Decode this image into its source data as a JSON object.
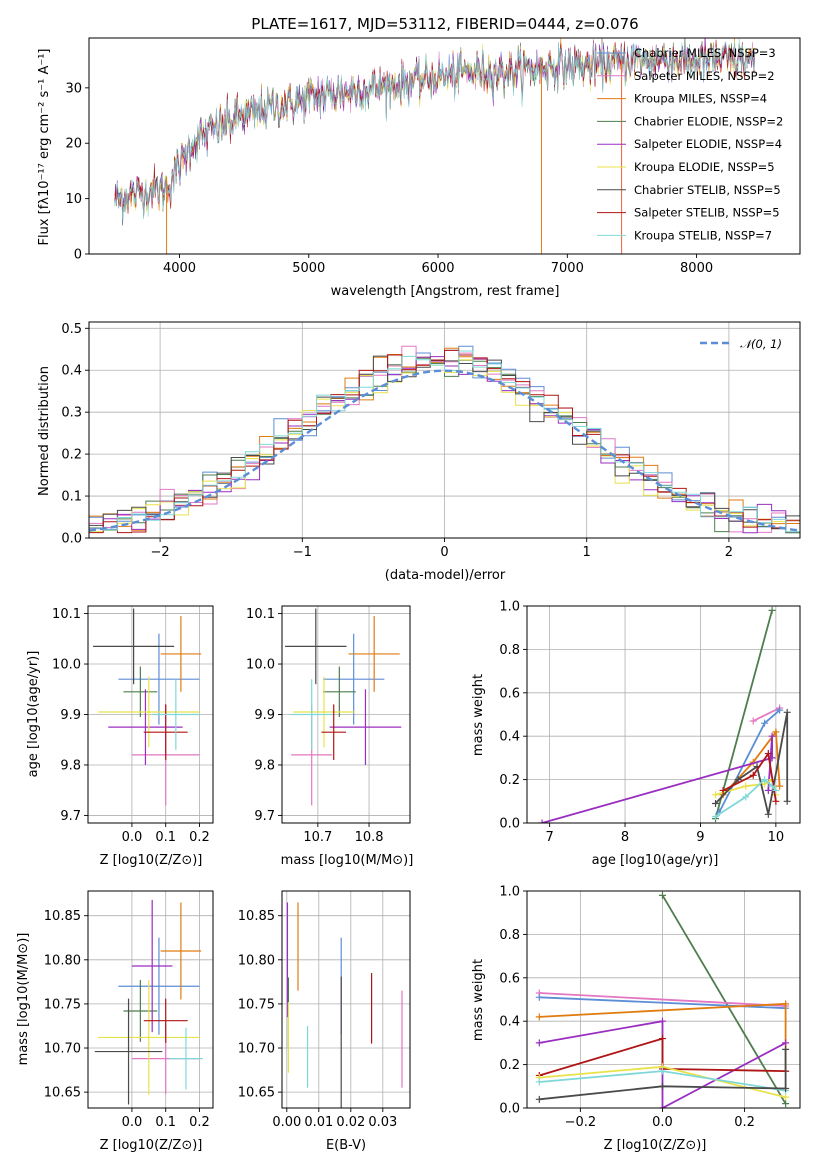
{
  "colors": {
    "chabrier_miles": "#5b8ed6",
    "salpeter_miles": "#e377c2",
    "kroupa_miles": "#e07b10",
    "chabrier_elodie": "#4e7d4e",
    "salpeter_elodie": "#9a2ec0",
    "kroupa_elodie": "#e8e24a",
    "chabrier_stelib": "#4a4a4a",
    "salpeter_stelib": "#b01515",
    "kroupa_stelib": "#7fd8d8",
    "normal": "#5b8ed6"
  },
  "chart_data": [
    {
      "id": "spectrum",
      "type": "line",
      "title": "PLATE=1617, MJD=53112, FIBERID=0444, z=0.076",
      "xlabel": "wavelength [Angstrom, rest frame]",
      "ylabel": "Flux [fλ10⁻¹⁷ erg cm⁻² s⁻¹ A⁻¹]",
      "xlim": [
        3300,
        8800
      ],
      "ylim": [
        0,
        39
      ],
      "xticks": [
        4000,
        5000,
        6000,
        7000,
        8000
      ],
      "yticks": [
        0,
        10,
        20,
        30
      ],
      "legend_position": "right",
      "legend": [
        "Chabrier MILES, NSSP=3",
        "Salpeter MILES, NSSP=2",
        "Kroupa MILES, NSSP=4",
        "Chabrier ELODIE, NSSP=2",
        "Salpeter ELODIE, NSSP=4",
        "Kroupa ELODIE, NSSP=5",
        "Chabrier STELIB, NSSP=5",
        "Salpeter STELIB, NSSP=5",
        "Kroupa STELIB, NSSP=7"
      ],
      "continuum": {
        "x": [
          3500,
          3700,
          3900,
          4000,
          4100,
          4300,
          4500,
          4800,
          5000,
          5200,
          5500,
          5800,
          6000,
          6300,
          6600,
          6900,
          7200,
          7500,
          7800,
          8100,
          8400
        ],
        "y": [
          10,
          11,
          12,
          16,
          20,
          23,
          25,
          27,
          28,
          29,
          30,
          31,
          32,
          33,
          33,
          34,
          34,
          35,
          35,
          35,
          35
        ]
      }
    },
    {
      "id": "residuals",
      "type": "histogram",
      "xlabel": "(data-model)/error",
      "ylabel": "Normed distribution",
      "xlim": [
        -2.5,
        2.5
      ],
      "ylim": [
        0,
        0.515
      ],
      "xticks": [
        -2,
        -1,
        0,
        1,
        2
      ],
      "yticks": [
        0.0,
        0.1,
        0.2,
        0.3,
        0.4,
        0.5
      ],
      "grid": true,
      "legend_position": "top-right",
      "legend": [
        "𝒩(0, 1)"
      ],
      "bins": {
        "start": -2.5,
        "width": 0.1,
        "count": 50
      }
    },
    {
      "id": "age-vs-Z",
      "type": "errorbar",
      "xlabel": "Z [log10(Z/Z⊙)]",
      "ylabel": "age  [log10(age/yr)]",
      "xlim": [
        -0.13,
        0.24
      ],
      "ylim": [
        9.685,
        10.115
      ],
      "xticks": [
        0.0,
        0.1,
        0.2
      ],
      "yticks": [
        9.7,
        9.8,
        9.9,
        10.0,
        10.1
      ],
      "grid": true,
      "points": [
        {
          "key": "chabrier_miles",
          "x": 0.08,
          "xerr": 0.12,
          "y": 9.97,
          "yerr": 0.09
        },
        {
          "key": "salpeter_miles",
          "x": 0.1,
          "xerr": 0.1,
          "y": 9.82,
          "yerr": 0.1
        },
        {
          "key": "kroupa_miles",
          "x": 0.145,
          "xerr": 0.06,
          "y": 10.02,
          "yerr": 0.075
        },
        {
          "key": "chabrier_elodie",
          "x": 0.025,
          "xerr": 0.05,
          "y": 9.945,
          "yerr": 0.05
        },
        {
          "key": "salpeter_elodie",
          "x": 0.04,
          "xerr": 0.11,
          "y": 9.875,
          "yerr": 0.075
        },
        {
          "key": "kroupa_elodie",
          "x": 0.05,
          "xerr": 0.15,
          "y": 9.905,
          "yerr": 0.07
        },
        {
          "key": "chabrier_stelib",
          "x": 0.005,
          "xerr": 0.12,
          "y": 10.035,
          "yerr": 0.075
        },
        {
          "key": "salpeter_stelib",
          "x": 0.1,
          "xerr": 0.065,
          "y": 9.865,
          "yerr": 0.055
        },
        {
          "key": "kroupa_stelib",
          "x": 0.13,
          "xerr": 0.07,
          "y": 9.9,
          "yerr": 0.07
        }
      ]
    },
    {
      "id": "age-vs-mass",
      "type": "errorbar",
      "xlabel": "mass [log10(M/M⊙)]",
      "ylabel": "",
      "xlim": [
        10.63,
        10.88
      ],
      "ylim": [
        9.685,
        10.115
      ],
      "xticks": [
        10.7,
        10.8
      ],
      "yticks": [
        9.7,
        9.8,
        9.9,
        10.0,
        10.1
      ],
      "grid": true,
      "points": [
        {
          "key": "chabrier_miles",
          "x": 10.77,
          "xerr": 0.06,
          "y": 9.97,
          "yerr": 0.09
        },
        {
          "key": "salpeter_miles",
          "x": 10.688,
          "xerr": 0.04,
          "y": 9.82,
          "yerr": 0.1
        },
        {
          "key": "kroupa_miles",
          "x": 10.81,
          "xerr": 0.05,
          "y": 10.02,
          "yerr": 0.075
        },
        {
          "key": "chabrier_elodie",
          "x": 10.742,
          "xerr": 0.032,
          "y": 9.945,
          "yerr": 0.05
        },
        {
          "key": "salpeter_elodie",
          "x": 10.793,
          "xerr": 0.07,
          "y": 9.875,
          "yerr": 0.075
        },
        {
          "key": "kroupa_elodie",
          "x": 10.712,
          "xerr": 0.06,
          "y": 9.905,
          "yerr": 0.07
        },
        {
          "key": "chabrier_stelib",
          "x": 10.696,
          "xerr": 0.06,
          "y": 10.035,
          "yerr": 0.075
        },
        {
          "key": "salpeter_stelib",
          "x": 10.731,
          "xerr": 0.024,
          "y": 9.865,
          "yerr": 0.055
        },
        {
          "key": "kroupa_stelib",
          "x": 10.688,
          "xerr": 0.04,
          "y": 9.9,
          "yerr": 0.07
        }
      ]
    },
    {
      "id": "weights-vs-age",
      "type": "line",
      "xlabel": "age  [log10(age/yr)]",
      "ylabel": "mass weight",
      "xlim": [
        6.7,
        10.32
      ],
      "ylim": [
        0,
        1
      ],
      "xticks": [
        7,
        8,
        9,
        10
      ],
      "yticks": [
        0.0,
        0.2,
        0.4,
        0.6,
        0.8,
        1.0
      ],
      "grid": true,
      "series": [
        {
          "key": "chabrier_elodie",
          "x": [
            9.2,
            9.95
          ],
          "y": [
            0.02,
            0.98
          ]
        },
        {
          "key": "salpeter_miles",
          "x": [
            9.7,
            10.05
          ],
          "y": [
            0.47,
            0.53
          ]
        },
        {
          "key": "chabrier_miles",
          "x": [
            9.25,
            9.85,
            10.05
          ],
          "y": [
            0.05,
            0.46,
            0.52
          ]
        },
        {
          "key": "kroupa_miles",
          "x": [
            9.3,
            9.7,
            10.0,
            10.05
          ],
          "y": [
            0.13,
            0.28,
            0.42,
            0.17
          ]
        },
        {
          "key": "salpeter_elodie",
          "x": [
            6.9,
            9.95,
            9.95,
            9.9
          ],
          "y": [
            0.0,
            0.3,
            0.4,
            0.15
          ]
        },
        {
          "key": "kroupa_elodie",
          "x": [
            9.2,
            9.6,
            9.85,
            9.95,
            10.0
          ],
          "y": [
            0.13,
            0.17,
            0.18,
            0.2,
            0.13
          ]
        },
        {
          "key": "chabrier_stelib",
          "x": [
            9.2,
            9.5,
            9.75,
            9.9,
            10.15,
            10.15
          ],
          "y": [
            0.09,
            0.2,
            0.26,
            0.04,
            0.51,
            0.1
          ]
        },
        {
          "key": "salpeter_stelib",
          "x": [
            9.3,
            9.7,
            9.9,
            10.0
          ],
          "y": [
            0.15,
            0.22,
            0.32,
            0.1
          ]
        },
        {
          "key": "kroupa_stelib",
          "x": [
            9.2,
            9.6,
            9.85,
            9.95,
            10.0
          ],
          "y": [
            0.03,
            0.12,
            0.2,
            0.17,
            0.15
          ]
        }
      ]
    },
    {
      "id": "mass-vs-Z",
      "type": "errorbar",
      "xlabel": "Z [log10(Z/Z⊙)]",
      "ylabel": "mass [log10(M/M⊙)]",
      "xlim": [
        -0.13,
        0.24
      ],
      "ylim": [
        10.632,
        10.878
      ],
      "xticks": [
        0.0,
        0.1,
        0.2
      ],
      "yticks": [
        10.65,
        10.7,
        10.75,
        10.8,
        10.85
      ],
      "grid": true,
      "points": [
        {
          "key": "chabrier_miles",
          "x": 0.08,
          "xerr": 0.12,
          "y": 10.77,
          "yerr": 0.055
        },
        {
          "key": "salpeter_miles",
          "x": 0.1,
          "xerr": 0.1,
          "y": 10.688,
          "yerr": 0.04
        },
        {
          "key": "kroupa_miles",
          "x": 0.145,
          "xerr": 0.06,
          "y": 10.81,
          "yerr": 0.055
        },
        {
          "key": "chabrier_elodie",
          "x": 0.025,
          "xerr": 0.05,
          "y": 10.742,
          "yerr": 0.035
        },
        {
          "key": "salpeter_elodie",
          "x": 0.06,
          "xerr": 0.06,
          "y": 10.793,
          "yerr": 0.075
        },
        {
          "key": "kroupa_elodie",
          "x": 0.05,
          "xerr": 0.15,
          "y": 10.712,
          "yerr": 0.065
        },
        {
          "key": "chabrier_stelib",
          "x": -0.01,
          "xerr": 0.1,
          "y": 10.696,
          "yerr": 0.06
        },
        {
          "key": "salpeter_stelib",
          "x": 0.1,
          "xerr": 0.065,
          "y": 10.731,
          "yerr": 0.025
        },
        {
          "key": "kroupa_stelib",
          "x": 0.16,
          "xerr": 0.05,
          "y": 10.688,
          "yerr": 0.035
        }
      ]
    },
    {
      "id": "mass-vs-ebv",
      "type": "errorbar",
      "xlabel": "E(B-V)",
      "ylabel": "",
      "xlim": [
        -0.0015,
        0.0385
      ],
      "ylim": [
        10.632,
        10.878
      ],
      "xticks": [
        0.0,
        0.01,
        0.02,
        0.03
      ],
      "yticks": [
        10.65,
        10.7,
        10.75,
        10.8,
        10.85
      ],
      "grid": true,
      "points": [
        {
          "key": "chabrier_miles",
          "x": 0.017,
          "y": 10.77,
          "yerr": 0.055
        },
        {
          "key": "salpeter_miles",
          "x": 0.036,
          "y": 10.71,
          "yerr": 0.055
        },
        {
          "key": "kroupa_miles",
          "x": 0.0035,
          "y": 10.815,
          "yerr": 0.05
        },
        {
          "key": "chabrier_elodie",
          "x": 0.0005,
          "y": 10.74,
          "yerr": 0.04
        },
        {
          "key": "salpeter_elodie",
          "x": 0.0002,
          "y": 10.8,
          "yerr": 0.065
        },
        {
          "key": "kroupa_elodie",
          "x": 0.0005,
          "y": 10.712,
          "yerr": 0.04
        },
        {
          "key": "chabrier_stelib",
          "x": 0.017,
          "y": 10.696,
          "yerr": 0.085
        },
        {
          "key": "salpeter_stelib",
          "x": 0.0265,
          "y": 10.745,
          "yerr": 0.04
        },
        {
          "key": "kroupa_stelib",
          "x": 0.0065,
          "y": 10.69,
          "yerr": 0.035
        }
      ]
    },
    {
      "id": "weights-vs-Z",
      "type": "line",
      "xlabel": "Z [log10(Z/Z⊙)]",
      "ylabel": "mass weight",
      "xlim": [
        -0.33,
        0.335
      ],
      "ylim": [
        0,
        1
      ],
      "xticks": [
        -0.2,
        0.0,
        0.2
      ],
      "yticks": [
        0.0,
        0.2,
        0.4,
        0.6,
        0.8,
        1.0
      ],
      "grid": true,
      "series": [
        {
          "key": "chabrier_elodie",
          "x": [
            0.0,
            0.3
          ],
          "y": [
            0.98,
            0.02
          ]
        },
        {
          "key": "salpeter_miles",
          "x": [
            -0.3,
            0.3
          ],
          "y": [
            0.53,
            0.47
          ]
        },
        {
          "key": "chabrier_miles",
          "x": [
            -0.3,
            0.3
          ],
          "y": [
            0.51,
            0.46
          ]
        },
        {
          "key": "kroupa_miles",
          "x": [
            -0.3,
            0.3,
            0.3
          ],
          "y": [
            0.42,
            0.48,
            0.17
          ]
        },
        {
          "key": "salpeter_elodie",
          "x": [
            -0.3,
            0.0,
            0.0,
            0.3
          ],
          "y": [
            0.3,
            0.4,
            0.0,
            0.3
          ]
        },
        {
          "key": "salpeter_stelib",
          "x": [
            -0.3,
            0.0,
            0.0,
            0.3
          ],
          "y": [
            0.15,
            0.32,
            0.18,
            0.17
          ]
        },
        {
          "key": "kroupa_elodie",
          "x": [
            -0.3,
            0.0,
            0.3
          ],
          "y": [
            0.14,
            0.19,
            0.05
          ]
        },
        {
          "key": "kroupa_stelib",
          "x": [
            -0.3,
            0.0,
            0.3
          ],
          "y": [
            0.12,
            0.17,
            0.08
          ]
        },
        {
          "key": "chabrier_stelib",
          "x": [
            -0.3,
            0.0,
            0.3,
            0.3
          ],
          "y": [
            0.04,
            0.1,
            0.09,
            0.27
          ]
        }
      ]
    }
  ]
}
